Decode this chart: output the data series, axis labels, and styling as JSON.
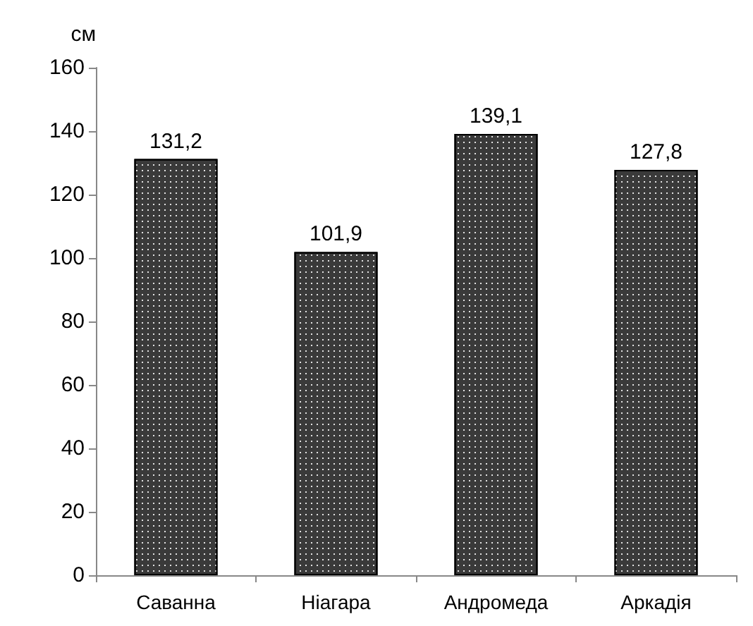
{
  "chart_data": {
    "type": "bar",
    "ylabel": "см",
    "categories": [
      "Саванна",
      "Ніагара",
      "Андромеда",
      "Аркадія"
    ],
    "values": [
      131.2,
      101.9,
      139.1,
      127.8
    ],
    "value_labels": [
      "131,2",
      "101,9",
      "139,1",
      "127,8"
    ],
    "color": "#3a3a3a",
    "ylim": [
      0,
      160
    ],
    "yticks": [
      0,
      20,
      40,
      60,
      80,
      100,
      120,
      140,
      160
    ],
    "grid": false
  }
}
